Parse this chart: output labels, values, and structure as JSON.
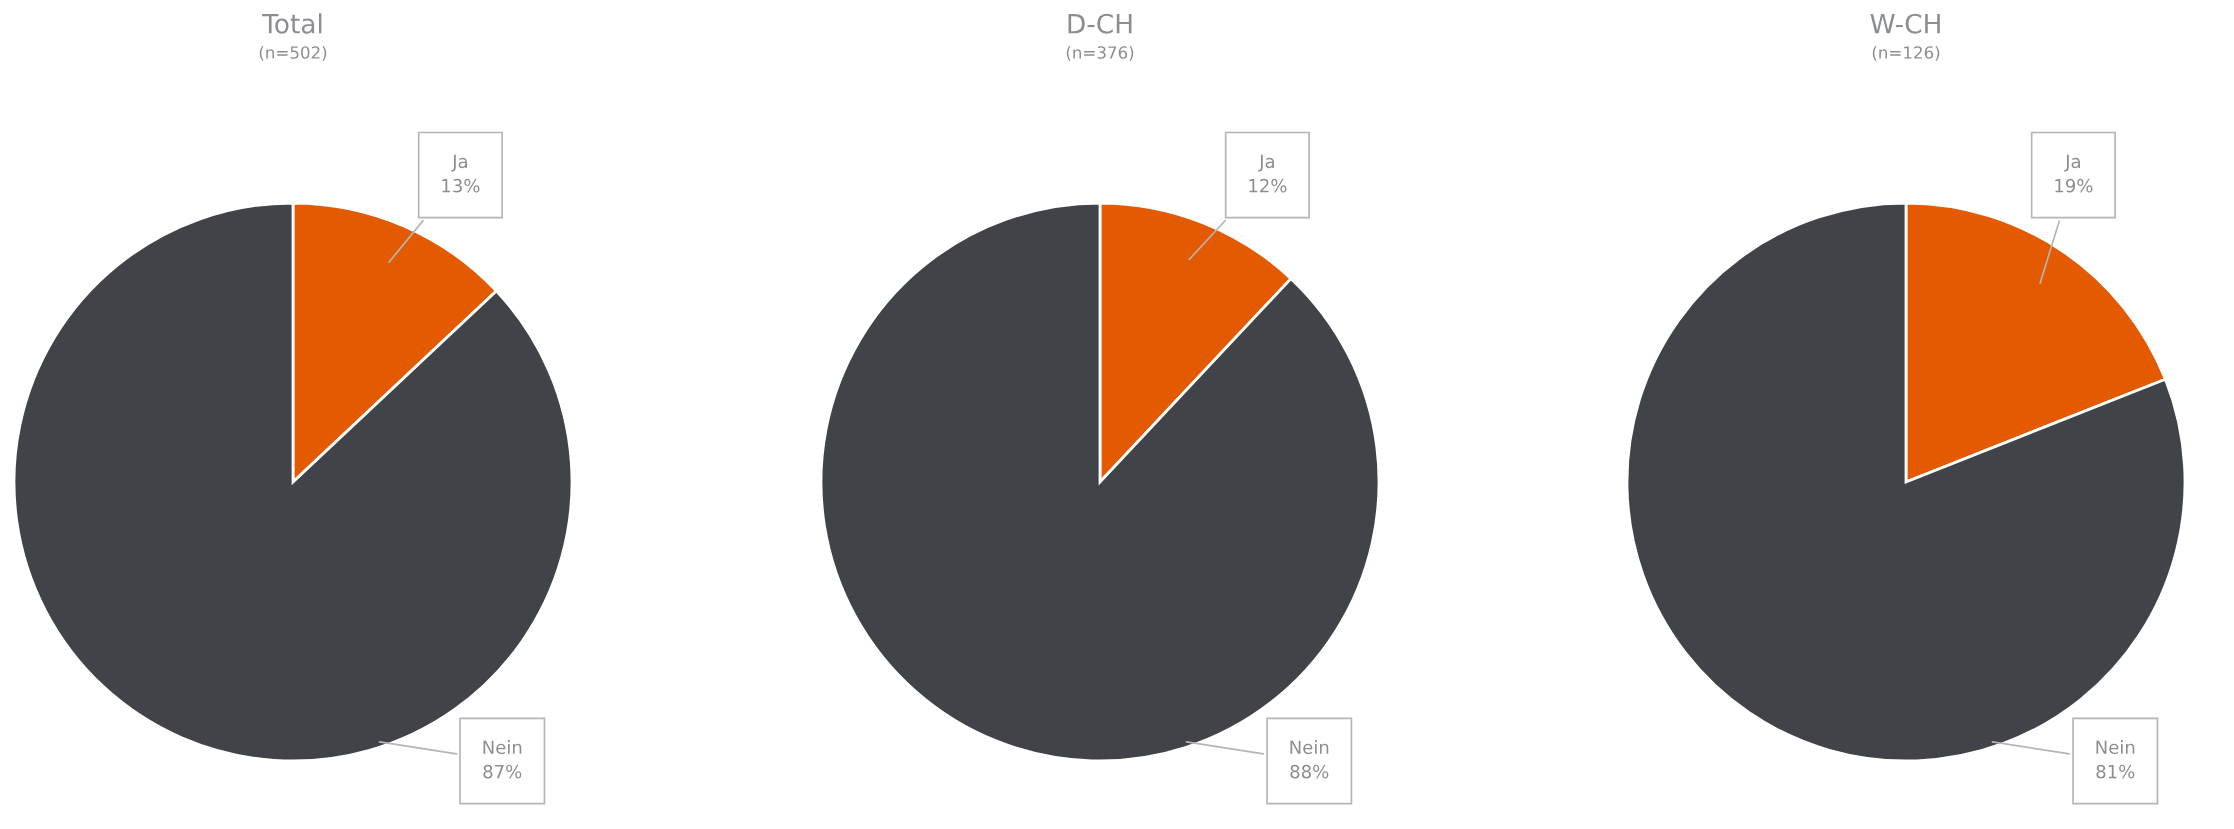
{
  "chart_data": [
    {
      "type": "pie",
      "title": "Total",
      "subtitle": "(n=502)",
      "categories": [
        "Ja",
        "Nein"
      ],
      "values": [
        13,
        87
      ],
      "value_labels": [
        "13%",
        "87%"
      ],
      "colors": [
        "#e35a00",
        "#404347"
      ]
    },
    {
      "type": "pie",
      "title": "D-CH",
      "subtitle": "(n=376)",
      "categories": [
        "Ja",
        "Nein"
      ],
      "values": [
        12,
        88
      ],
      "value_labels": [
        "12%",
        "88%"
      ],
      "colors": [
        "#e35a00",
        "#404347"
      ]
    },
    {
      "type": "pie",
      "title": "W-CH",
      "subtitle": "(n=126)",
      "categories": [
        "Ja",
        "Nein"
      ],
      "values": [
        19,
        81
      ],
      "value_labels": [
        "19%",
        "81%"
      ],
      "colors": [
        "#e35a00",
        "#404347"
      ]
    }
  ]
}
